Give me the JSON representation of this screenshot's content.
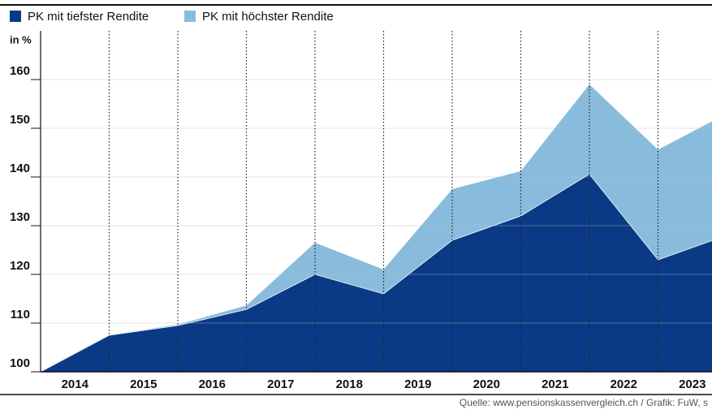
{
  "chart_data": {
    "type": "area",
    "y_label": "in %",
    "source": "Quelle: www.pensionskassenvergleich.ch / Grafik: FuW, s",
    "categories": [
      "2014",
      "2015",
      "2016",
      "2017",
      "2018",
      "2019",
      "2020",
      "2021",
      "2022",
      "2023"
    ],
    "x": [
      2014,
      2015,
      2016,
      2017,
      2018,
      2019,
      2020,
      2021,
      2022,
      2023,
      2024
    ],
    "series": [
      {
        "name": "PK mit höchster Rendite",
        "color": "#89bcdc",
        "values": [
          100,
          107.5,
          109.7,
          113.6,
          126.5,
          121,
          137.5,
          141.2,
          159,
          145.6,
          153
        ]
      },
      {
        "name": "PK mit tiefster Rendite",
        "color": "#0a3a85",
        "values": [
          100,
          107.5,
          109.5,
          112.8,
          120,
          116,
          127,
          132,
          140.6,
          123,
          128
        ]
      }
    ],
    "legend_order": [
      1,
      0
    ],
    "xlim": [
      2014,
      2024
    ],
    "ylim": [
      100,
      170
    ],
    "yticks": [
      100,
      110,
      120,
      130,
      140,
      150,
      160
    ],
    "grid": true
  }
}
